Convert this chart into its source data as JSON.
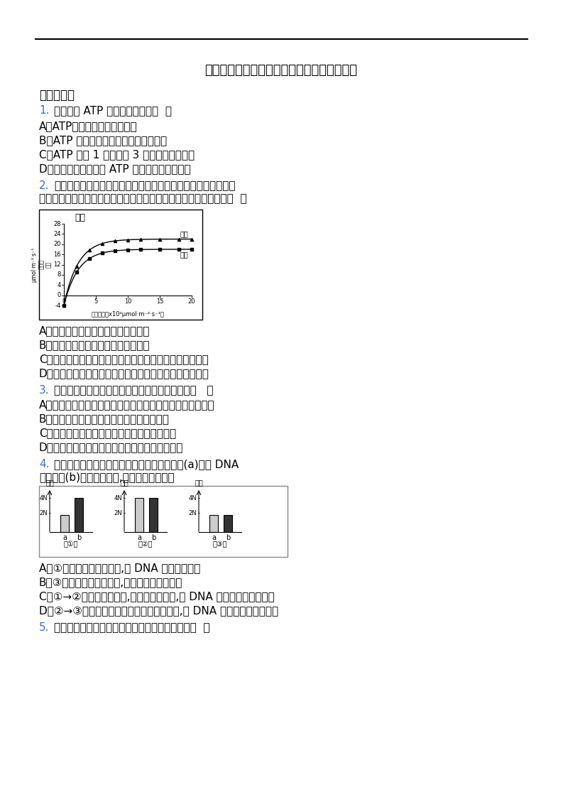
{
  "title": "镇江市高一生物必修一期末考试模拟题含答案",
  "section1": "一、单选题",
  "q1_num": "1.",
  "q1_text": "下列有关 ATP 的说法错误的是（  ）",
  "q1_opts": [
    "A．ATP不能在细胞内大量储存",
    "B．ATP 与脱氧核糖核酸的元素组成一致",
    "C．ATP 是由 1 个腺苷和 3 个磷酸基团组成的",
    "D．光反应阶段产生的 ATP 可用于各项生命活动"
  ],
  "q2_num": "2.",
  "q2_text": "下图是在不同光照强度下测得的桑树与大豆间作（两种隔行种植）和大豆单作（单独种植）时大豆的光合速率。下列叙述错误的是（  ）",
  "q2_opts": [
    "A．大豆植株的呼吸强度单作大于间作",
    "B．大豆植株的光合速率单作大于间作",
    "C．大豆植株开始积累有机物的最低光照强度单作大于间作",
    "D．为减小误差，间作与单作植株间的株距、行距均需相同"
  ],
  "q3_num": "3.",
  "q3_text": "下列关于生物膜结构、功能的叙述，不正确的是（   ）",
  "q3_opts": [
    "A．细胞膜、内质网膜与小肠黏膜都属于细胞内的生物膜系统",
    "B．细胞膜均以磷脂双分子层为基本结构支架",
    "C．细胞内的囊泡可来自于内质网和高尔基体膜",
    "D．细胞膜上的受体是参与细胞间信息交流的结构"
  ],
  "q4_num": "4.",
  "q4_text": "下图是动物细胞有丝分裂不同时期染色体数目(a)、核 DNA 分子数目(b)的柱形统计图,下列叙述正确的是",
  "q4_opts": [
    "A．①时期染色体还未复制,核 DNA 已完成了复制",
    "B．③时期核膜、核仁重建,细胞中部出现细胞板",
    "C．①→②表示着丝点分裂,染色体数目加倍,核 DNA 分子数目也随之加倍",
    "D．②→③表示染色体平均分配到两个子细胞,核 DNA 分子也随之平均分配"
  ],
  "q5_num": "5.",
  "q5_text": "以下二倍体生物的细胞中含有两个染色体组的是（  ）",
  "bg_color": "#ffffff",
  "text_color": "#000000",
  "num_color": "#4169E1",
  "highlight_color": "#4169E1"
}
